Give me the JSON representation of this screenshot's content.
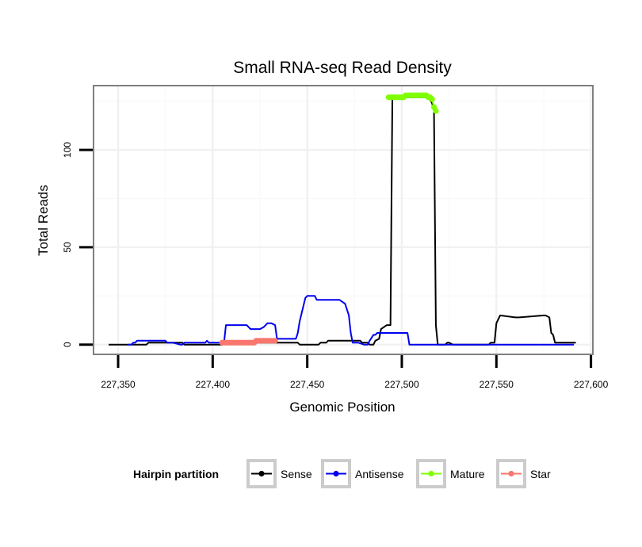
{
  "chart_data": {
    "type": "line",
    "title": "Small RNA-seq Read Density",
    "xlabel": "Genomic Position",
    "ylabel": "Total Reads",
    "xlim": [
      227337,
      227601
    ],
    "ylim": [
      -5,
      133
    ],
    "x_ticks": [
      227350,
      227400,
      227450,
      227500,
      227550,
      227600
    ],
    "x_tick_labels": [
      "227,350",
      "227,400",
      "227,450",
      "227,500",
      "227,550",
      "227,600"
    ],
    "y_ticks": [
      0,
      50,
      100
    ],
    "y_tick_labels": [
      "0",
      "50",
      "100"
    ],
    "grid": true,
    "legend": {
      "title": "Hairpin partition",
      "position": "bottom",
      "entries": [
        "Sense",
        "Antisense",
        "Mature",
        "Star"
      ]
    },
    "series": [
      {
        "name": "Sense",
        "color": "#000000",
        "marker": false,
        "x": [
          227345,
          227365,
          227366,
          227384,
          227385,
          227405,
          227406,
          227432,
          227433,
          227445,
          227446,
          227450,
          227451,
          227456,
          227457,
          227460,
          227461,
          227470,
          227471,
          227478,
          227479,
          227482,
          227483,
          227485,
          227486,
          227488,
          227489,
          227492,
          227493,
          227494,
          227495,
          227514,
          227516,
          227517,
          227518,
          227519,
          227520,
          227523,
          227524,
          227525,
          227527,
          227546,
          227547,
          227548,
          227549,
          227550,
          227552,
          227560,
          227562,
          227575,
          227576,
          227578,
          227579,
          227580,
          227581,
          227592
        ],
        "y": [
          0,
          0,
          1,
          1,
          0,
          0,
          1,
          1,
          1,
          1,
          0,
          0,
          0,
          0,
          1,
          1,
          2,
          2,
          2,
          2,
          1,
          1,
          0,
          0,
          2,
          3,
          8,
          10,
          10,
          10,
          127,
          127,
          124,
          120,
          10,
          0,
          0,
          0,
          1,
          1,
          0,
          0,
          1,
          1,
          1,
          11,
          15,
          14,
          14,
          15,
          15,
          14,
          6,
          5,
          1,
          1
        ]
      },
      {
        "name": "Antisense",
        "color": "#0000ee",
        "marker": false,
        "x": [
          227355,
          227357,
          227358,
          227359,
          227360,
          227375,
          227376,
          227378,
          227379,
          227383,
          227384,
          227385,
          227396,
          227397,
          227398,
          227401,
          227404,
          227406,
          227407,
          227408,
          227418,
          227420,
          227423,
          227425,
          227427,
          227429,
          227431,
          227433,
          227434,
          227443,
          227444,
          227445,
          227446,
          227448,
          227449,
          227450,
          227452,
          227454,
          227455,
          227467,
          227470,
          227472,
          227473,
          227474,
          227475,
          227477,
          227480,
          227482,
          227483,
          227485,
          227486,
          227487,
          227488,
          227496,
          227497,
          227499,
          227500,
          227501,
          227502,
          227503,
          227504,
          227591
        ],
        "y": [
          0,
          0,
          1,
          1,
          2,
          2,
          1,
          1,
          1,
          0,
          0,
          1,
          1,
          2,
          1,
          1,
          1,
          1,
          10,
          10,
          10,
          8,
          8,
          8,
          9,
          11,
          11,
          10,
          3,
          3,
          3,
          6,
          12,
          20,
          24,
          25,
          25,
          25,
          23,
          23,
          21,
          15,
          6,
          1,
          1,
          1,
          0,
          0,
          2,
          5,
          5,
          6,
          6,
          6,
          6,
          6,
          6,
          6,
          6,
          6,
          0,
          0
        ]
      },
      {
        "name": "Mature",
        "color": "#7fff00",
        "marker": true,
        "x": [
          227493,
          227494,
          227495,
          227496,
          227497,
          227498,
          227499,
          227500,
          227501,
          227502,
          227503,
          227504,
          227505,
          227506,
          227507,
          227508,
          227509,
          227510,
          227511,
          227512,
          227513,
          227514,
          227515,
          227516,
          227517,
          227518
        ],
        "y": [
          127,
          127,
          127,
          127,
          127,
          127,
          127,
          127,
          127,
          128,
          128,
          128,
          128,
          128,
          128,
          128,
          128,
          128,
          128,
          128,
          128,
          127,
          127,
          126,
          122,
          120
        ]
      },
      {
        "name": "Star",
        "color": "#f8766d",
        "marker": true,
        "x": [
          227405,
          227406,
          227407,
          227408,
          227409,
          227410,
          227411,
          227412,
          227413,
          227414,
          227415,
          227416,
          227417,
          227418,
          227419,
          227420,
          227421,
          227422,
          227423,
          227424,
          227425,
          227426,
          227427,
          227428,
          227429,
          227430,
          227431,
          227432,
          227433
        ],
        "y": [
          1,
          1,
          1,
          1,
          1,
          1,
          1,
          1,
          1,
          1,
          1,
          1,
          1,
          1,
          1,
          1,
          1,
          1,
          2,
          2,
          2,
          2,
          2,
          2,
          2,
          2,
          2,
          2,
          2
        ]
      }
    ]
  }
}
